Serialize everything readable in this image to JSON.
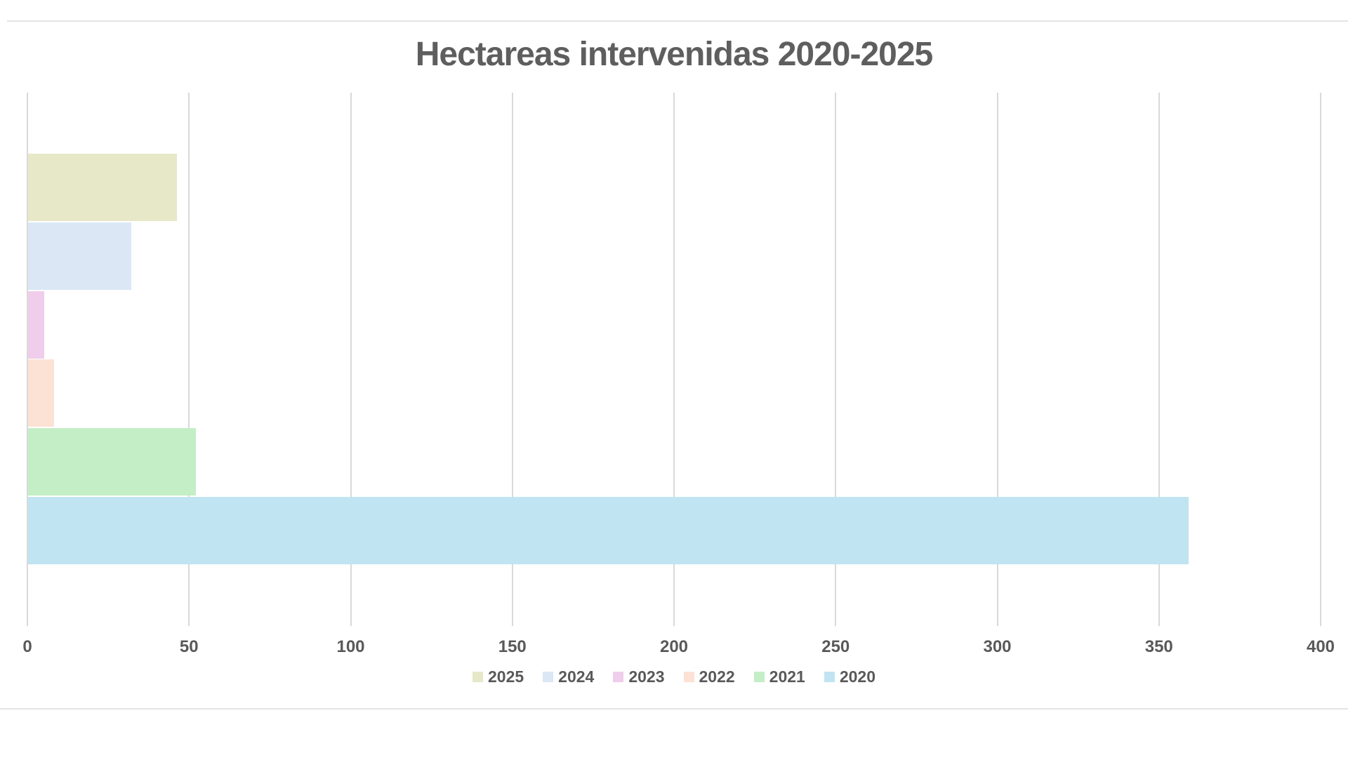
{
  "page": {
    "background_color": "#ffffff",
    "divider_color": "#e4e4e4"
  },
  "chart_data": {
    "type": "bar",
    "orientation": "horizontal",
    "title": "Hectareas intervenidas 2020-2025",
    "title_color": "#5e5e5e",
    "text_color": "#595959",
    "categories": [
      "2025",
      "2024",
      "2023",
      "2022",
      "2021",
      "2020"
    ],
    "series": [
      {
        "name": "2025",
        "value": 46,
        "color": "#e7e8c8"
      },
      {
        "name": "2024",
        "value": 32,
        "color": "#dbe7f5"
      },
      {
        "name": "2023",
        "value": 5,
        "color": "#efcdeb"
      },
      {
        "name": "2022",
        "value": 8,
        "color": "#fbe2d4"
      },
      {
        "name": "2021",
        "value": 52,
        "color": "#c4eec6"
      },
      {
        "name": "2020",
        "value": 359,
        "color": "#c0e4f2"
      }
    ],
    "x_axis": {
      "min": 0,
      "max": 400,
      "step": 50,
      "tick_labels": [
        "0",
        "50",
        "100",
        "150",
        "200",
        "250",
        "300",
        "350",
        "400"
      ]
    },
    "grid": {
      "vertical": true,
      "horizontal": false,
      "color": "#d9d9d9"
    },
    "legend": {
      "position": "bottom",
      "entries": [
        "2025",
        "2024",
        "2023",
        "2022",
        "2021",
        "2020"
      ]
    }
  }
}
